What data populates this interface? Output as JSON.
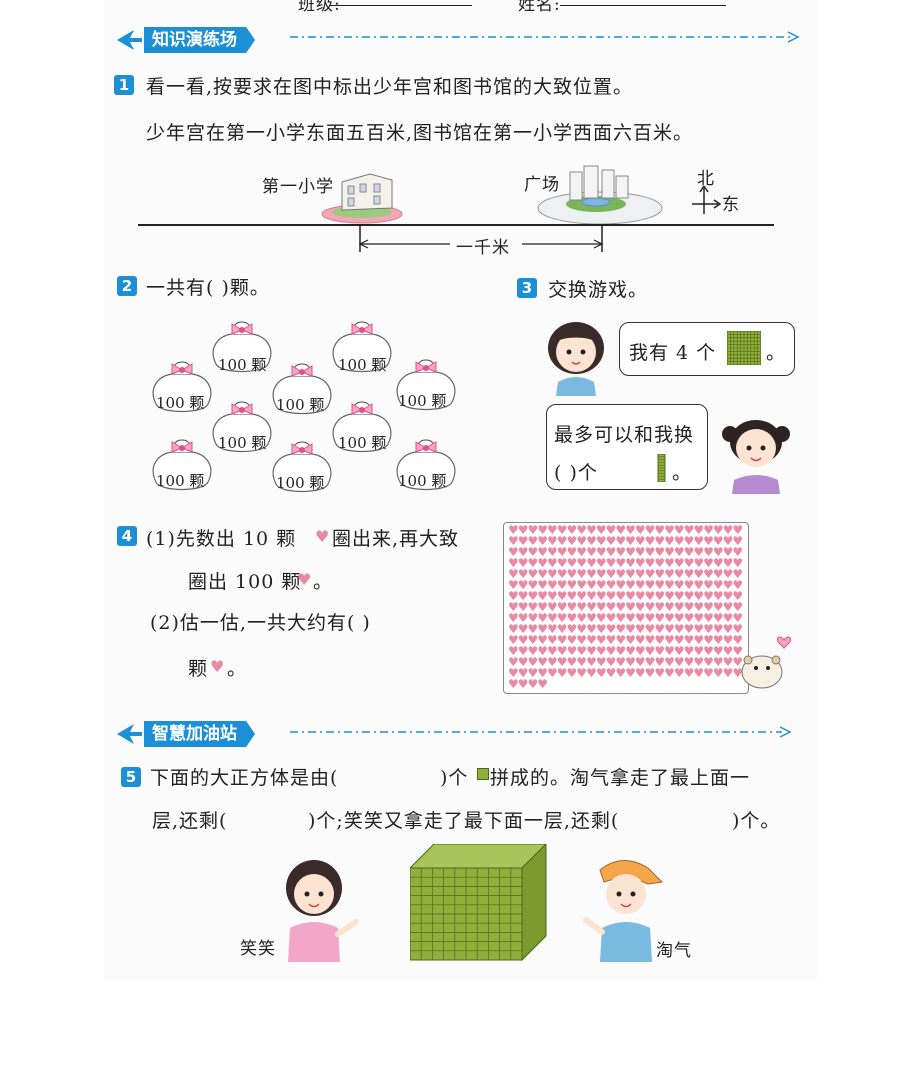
{
  "header": {
    "class_label": "班级:",
    "name_label": "姓名:"
  },
  "sections": {
    "knowledge_title": "知识演练场",
    "wisdom_title": "智慧加油站"
  },
  "q1": {
    "number": "1",
    "prompt": "看一看,按要求在图中标出少年宫和图书馆的大致位置。",
    "instruction": "少年宫在第一小学东面五百米,图书馆在第一小学西面六百米。",
    "school_label": "第一小学",
    "square_label": "广场",
    "north_label": "北",
    "east_label": "东",
    "distance_label": "一千米"
  },
  "q2": {
    "number": "2",
    "prompt": "一共有(      )颗。",
    "bag_label": "100 颗",
    "bag_count": 10
  },
  "q3": {
    "number": "3",
    "prompt": "交换游戏。",
    "bubble1": "我有 4 个",
    "bubble1_end": "。",
    "bubble2_line1": "最多可以和我换",
    "bubble2_line2": "(      )个",
    "bubble2_end": "。"
  },
  "q4": {
    "number": "4",
    "part1_line1": "(1)先数出 10 颗",
    "part1_line1_end": "圈出来,再大致",
    "part1_line2": "圈出 100 颗",
    "part1_line2_end": "。",
    "part2_line1": "(2)估一估,一共大约有(      )",
    "part2_line2": "颗",
    "part2_line2_end": "。"
  },
  "q5": {
    "number": "5",
    "line1_a": "下面的大正方体是由(",
    "line1_b": ")个",
    "line1_c": "拼成的。淘气拿走了最上面一",
    "line2_a": "层,还剩(",
    "line2_b": ")个;笑笑又拿走了最下面一层,还剩(",
    "line2_c": ")个。",
    "girl_label": "笑笑",
    "boy_label": "淘气"
  },
  "colors": {
    "accent_blue": "#1c8fd6",
    "heart_pink": "#e98aa5",
    "cube_green": "#8fae3a",
    "bag_pink": "#e24f8a"
  }
}
